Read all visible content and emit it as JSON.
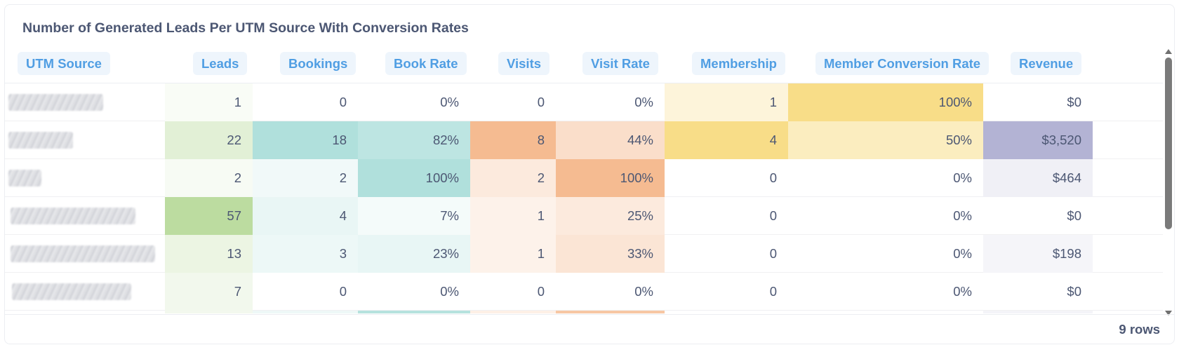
{
  "card": {
    "title": "Number of Generated Leads Per UTM Source With Conversion Rates"
  },
  "columns": [
    {
      "label": "UTM Source"
    },
    {
      "label": "Leads"
    },
    {
      "label": "Bookings"
    },
    {
      "label": "Book Rate"
    },
    {
      "label": "Visits"
    },
    {
      "label": "Visit Rate"
    },
    {
      "label": "Membership"
    },
    {
      "label": "Member Conversion Rate"
    },
    {
      "label": "Revenue"
    }
  ],
  "rows": [
    {
      "source": "",
      "leads": "1",
      "bookings": "0",
      "book_rate": "0%",
      "visits": "0",
      "visit_rate": "0%",
      "membership": "1",
      "member_rate": "100%",
      "revenue": "$0"
    },
    {
      "source": "",
      "leads": "22",
      "bookings": "18",
      "book_rate": "82%",
      "visits": "8",
      "visit_rate": "44%",
      "membership": "4",
      "member_rate": "50%",
      "revenue": "$3,520"
    },
    {
      "source": "",
      "leads": "2",
      "bookings": "2",
      "book_rate": "100%",
      "visits": "2",
      "visit_rate": "100%",
      "membership": "0",
      "member_rate": "0%",
      "revenue": "$464"
    },
    {
      "source": "",
      "leads": "57",
      "bookings": "4",
      "book_rate": "7%",
      "visits": "1",
      "visit_rate": "25%",
      "membership": "0",
      "member_rate": "0%",
      "revenue": "$0"
    },
    {
      "source": "",
      "leads": "13",
      "bookings": "3",
      "book_rate": "23%",
      "visits": "1",
      "visit_rate": "33%",
      "membership": "0",
      "member_rate": "0%",
      "revenue": "$198"
    },
    {
      "source": "",
      "leads": "7",
      "bookings": "0",
      "book_rate": "0%",
      "visits": "0",
      "visit_rate": "0%",
      "membership": "0",
      "member_rate": "0%",
      "revenue": "$0"
    }
  ],
  "colors": {
    "leads": "#bcdca0",
    "bookings": "#b0e0dc",
    "book_rate": "#b0e0dc",
    "visits": "#f5bb91",
    "visit_rate": "#f5bb91",
    "membership": "#f8dd88",
    "member_rate": "#f8dd88",
    "revenue": "#b3b3d4"
  },
  "footer": {
    "row_count": "9 rows"
  }
}
